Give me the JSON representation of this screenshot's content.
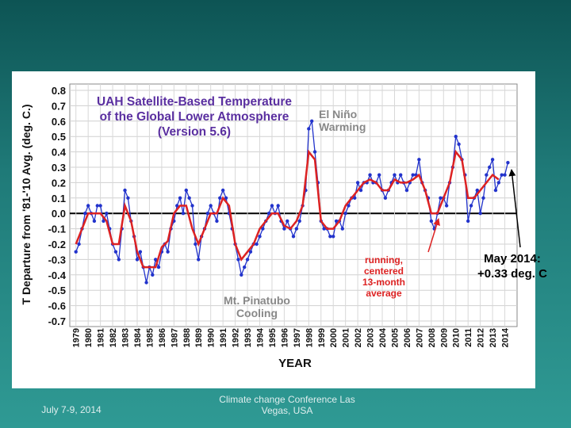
{
  "chart_data": {
    "type": "line",
    "title": [
      "UAH Satellite-Based Temperature",
      "of the Global Lower Atmosphere",
      "(Version 5.6)"
    ],
    "y_label": "T Departure from '81-'10 Avg. (deg. C.)",
    "x_label": "YEAR",
    "annotations": [
      {
        "lines": [
          "El Niño",
          "Warming"
        ]
      },
      {
        "lines": [
          "Mt. Pinatubo",
          "Cooling"
        ]
      },
      {
        "lines": [
          "running,",
          "centered",
          "13-month",
          "average"
        ]
      },
      {
        "lines": [
          "May 2014:",
          "+0.33 deg. C"
        ]
      }
    ],
    "xlim": [
      1978.5,
      2015
    ],
    "ylim": [
      -0.7,
      0.8
    ],
    "xticks": [
      1979,
      1980,
      1981,
      1982,
      1983,
      1984,
      1985,
      1986,
      1987,
      1988,
      1989,
      1990,
      1991,
      1992,
      1993,
      1994,
      1995,
      1996,
      1997,
      1998,
      1999,
      2000,
      2001,
      2002,
      2003,
      2004,
      2005,
      2006,
      2007,
      2008,
      2009,
      2010,
      2011,
      2012,
      2013,
      2014
    ],
    "yticks": [
      0.8,
      0.7,
      0.6,
      0.5,
      0.4,
      0.3,
      0.2,
      0.1,
      {
        "value": 0,
        "label": "0.0"
      },
      -0.1,
      -0.2,
      -0.3,
      -0.4,
      -0.5,
      -0.6,
      -0.7
    ],
    "grid": true,
    "series": [
      {
        "color": "#2233cc",
        "markers": true,
        "x": [
          1979,
          1979.25,
          1979.5,
          1979.75,
          1980,
          1980.25,
          1980.5,
          1980.75,
          1981,
          1981.25,
          1981.5,
          1981.75,
          1982,
          1982.25,
          1982.5,
          1982.75,
          1983,
          1983.25,
          1983.5,
          1983.75,
          1984,
          1984.25,
          1984.5,
          1984.75,
          1985,
          1985.25,
          1985.5,
          1985.75,
          1986,
          1986.25,
          1986.5,
          1986.75,
          1987,
          1987.25,
          1987.5,
          1987.75,
          1988,
          1988.25,
          1988.5,
          1988.75,
          1989,
          1989.25,
          1989.5,
          1989.75,
          1990,
          1990.25,
          1990.5,
          1990.75,
          1991,
          1991.25,
          1991.5,
          1991.75,
          1992,
          1992.25,
          1992.5,
          1992.75,
          1993,
          1993.25,
          1993.5,
          1993.75,
          1994,
          1994.25,
          1994.5,
          1994.75,
          1995,
          1995.25,
          1995.5,
          1995.75,
          1996,
          1996.25,
          1996.5,
          1996.75,
          1997,
          1997.25,
          1997.5,
          1997.75,
          1998,
          1998.25,
          1998.5,
          1998.75,
          1999,
          1999.25,
          1999.5,
          1999.75,
          2000,
          2000.25,
          2000.5,
          2000.75,
          2001,
          2001.25,
          2001.5,
          2001.75,
          2002,
          2002.25,
          2002.5,
          2002.75,
          2003,
          2003.25,
          2003.5,
          2003.75,
          2004,
          2004.25,
          2004.5,
          2004.75,
          2005,
          2005.25,
          2005.5,
          2005.75,
          2006,
          2006.25,
          2006.5,
          2006.75,
          2007,
          2007.25,
          2007.5,
          2007.75,
          2008,
          2008.25,
          2008.5,
          2008.75,
          2009,
          2009.25,
          2009.5,
          2009.75,
          2010,
          2010.25,
          2010.5,
          2010.75,
          2011,
          2011.25,
          2011.5,
          2011.75,
          2012,
          2012.25,
          2012.5,
          2012.75,
          2013,
          2013.25,
          2013.5,
          2013.75,
          2014,
          2014.25
        ],
        "values": [
          -0.25,
          -0.2,
          -0.1,
          0.0,
          0.05,
          0.0,
          -0.05,
          0.05,
          0.05,
          -0.05,
          0.0,
          -0.1,
          -0.2,
          -0.25,
          -0.3,
          -0.1,
          0.15,
          0.1,
          -0.05,
          -0.15,
          -0.3,
          -0.25,
          -0.35,
          -0.45,
          -0.35,
          -0.4,
          -0.3,
          -0.35,
          -0.25,
          -0.2,
          -0.25,
          -0.1,
          -0.05,
          0.05,
          0.1,
          0.0,
          0.15,
          0.1,
          0.05,
          -0.2,
          -0.3,
          -0.15,
          -0.1,
          0.0,
          0.05,
          0.0,
          -0.05,
          0.1,
          0.15,
          0.1,
          0.0,
          -0.1,
          -0.2,
          -0.3,
          -0.4,
          -0.35,
          -0.3,
          -0.25,
          -0.2,
          -0.2,
          -0.15,
          -0.1,
          -0.05,
          0.0,
          0.05,
          0.0,
          0.05,
          -0.05,
          -0.1,
          -0.05,
          -0.1,
          -0.15,
          -0.1,
          -0.05,
          0.05,
          0.15,
          0.55,
          0.6,
          0.4,
          0.2,
          -0.05,
          -0.1,
          -0.1,
          -0.15,
          -0.15,
          -0.05,
          -0.05,
          -0.1,
          0.0,
          0.05,
          0.1,
          0.1,
          0.2,
          0.15,
          0.2,
          0.2,
          0.25,
          0.2,
          0.2,
          0.25,
          0.15,
          0.1,
          0.15,
          0.2,
          0.25,
          0.2,
          0.25,
          0.2,
          0.15,
          0.2,
          0.25,
          0.25,
          0.35,
          0.2,
          0.15,
          0.1,
          -0.05,
          -0.1,
          0.0,
          0.1,
          0.1,
          0.05,
          0.2,
          0.3,
          0.5,
          0.45,
          0.35,
          0.25,
          -0.05,
          0.05,
          0.1,
          0.15,
          0.0,
          0.1,
          0.25,
          0.3,
          0.35,
          0.15,
          0.2,
          0.25,
          0.25,
          0.33
        ]
      },
      {
        "color": "#dd2222",
        "markers": false,
        "x": [
          1979,
          1979.5,
          1980,
          1980.5,
          1981,
          1981.5,
          1982,
          1982.5,
          1983,
          1983.5,
          1984,
          1984.5,
          1985,
          1985.5,
          1986,
          1986.5,
          1987,
          1987.5,
          1988,
          1988.5,
          1989,
          1989.5,
          1990,
          1990.5,
          1991,
          1991.5,
          1992,
          1992.5,
          1993,
          1993.5,
          1994,
          1994.5,
          1995,
          1995.5,
          1996,
          1996.5,
          1997,
          1997.5,
          1998,
          1998.5,
          1999,
          1999.5,
          2000,
          2000.5,
          2001,
          2001.5,
          2002,
          2002.5,
          2003,
          2003.5,
          2004,
          2004.5,
          2005,
          2005.5,
          2006,
          2006.5,
          2007,
          2007.5,
          2008,
          2008.5,
          2009,
          2009.5,
          2010,
          2010.5,
          2011,
          2011.5,
          2012,
          2012.5,
          2013,
          2013.5
        ],
        "values": [
          -0.2,
          -0.1,
          0.0,
          0.0,
          0.0,
          -0.05,
          -0.2,
          -0.2,
          0.05,
          -0.05,
          -0.25,
          -0.35,
          -0.35,
          -0.35,
          -0.22,
          -0.18,
          0.0,
          0.05,
          0.05,
          -0.1,
          -0.2,
          -0.1,
          0.0,
          0.0,
          0.1,
          0.05,
          -0.2,
          -0.3,
          -0.25,
          -0.2,
          -0.1,
          -0.05,
          0.0,
          0.0,
          -0.08,
          -0.1,
          -0.05,
          0.05,
          0.4,
          0.35,
          -0.05,
          -0.1,
          -0.1,
          -0.05,
          0.05,
          0.1,
          0.15,
          0.2,
          0.22,
          0.2,
          0.15,
          0.15,
          0.22,
          0.2,
          0.2,
          0.22,
          0.25,
          0.15,
          0.0,
          0.0,
          0.1,
          0.2,
          0.4,
          0.35,
          0.1,
          0.1,
          0.15,
          0.2,
          0.25,
          0.22
        ]
      }
    ]
  },
  "footer": {
    "date": "July 7-9, 2014",
    "event": "Climate change Conference Las Vegas, USA"
  }
}
